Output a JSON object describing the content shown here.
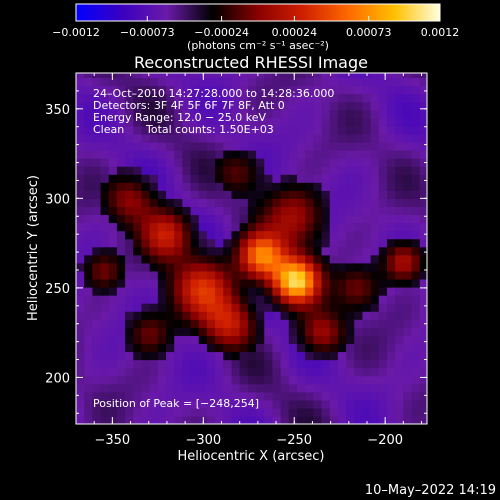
{
  "chart_data": {
    "type": "heatmap",
    "title": "Reconstructed RHESSI Image",
    "xlabel": "Heliocentric X (arcsec)",
    "ylabel": "Heliocentric Y (arcsec)",
    "xlim": [
      -370,
      -177
    ],
    "ylim": [
      174,
      370
    ],
    "x_ticks": [
      -350,
      -300,
      -250,
      -200
    ],
    "y_ticks": [
      200,
      250,
      300,
      350
    ],
    "x_tick_labels": [
      "−350",
      "−300",
      "−250",
      "−200"
    ],
    "y_tick_labels": [
      "200",
      "250",
      "300",
      "350"
    ],
    "colorbar": {
      "range": [
        -0.0012,
        0.0012
      ],
      "ticks": [
        -0.0012,
        -0.00073,
        -0.00024,
        0.00024,
        0.00073,
        0.0012
      ],
      "tick_labels": [
        "−0.0012",
        "−0.00073",
        "−0.00024",
        "0.00024",
        "0.00073",
        "0.0012"
      ],
      "units_label": "(photons cm⁻² s⁻¹ asec⁻²)",
      "colors": [
        "#0000ff",
        "#3a00c0",
        "#6a1aa8",
        "#000000",
        "#8a0000",
        "#d02000",
        "#ff6a00",
        "#ffc000",
        "#ffffe0"
      ]
    },
    "annotations": {
      "time_range": "24–Oct–2010 14:27:28.000 to 14:28:36.000",
      "detectors": "Detectors: 3F 4F 5F 6F 7F 8F, Att 0",
      "energy_range": "Energy Range: 12.0 − 25.0 keV",
      "clean_label": "Clean",
      "total_counts": "Total counts: 1.50E+03",
      "peak_position": "Position of Peak = [−248,254]"
    },
    "sources": [
      {
        "x": -249,
        "y": 254,
        "amp": 1.0,
        "sigma": 9
      },
      {
        "x": -268,
        "y": 268,
        "amp": 0.75,
        "sigma": 9
      },
      {
        "x": -300,
        "y": 250,
        "amp": 0.55,
        "sigma": 12
      },
      {
        "x": -320,
        "y": 280,
        "amp": 0.5,
        "sigma": 10
      },
      {
        "x": -285,
        "y": 230,
        "amp": 0.45,
        "sigma": 10
      },
      {
        "x": -235,
        "y": 225,
        "amp": 0.4,
        "sigma": 9
      },
      {
        "x": -340,
        "y": 300,
        "amp": 0.35,
        "sigma": 10
      },
      {
        "x": -250,
        "y": 290,
        "amp": 0.4,
        "sigma": 12
      },
      {
        "x": -190,
        "y": 265,
        "amp": 0.45,
        "sigma": 8
      },
      {
        "x": -215,
        "y": 250,
        "amp": 0.3,
        "sigma": 9
      },
      {
        "x": -330,
        "y": 225,
        "amp": 0.3,
        "sigma": 9
      },
      {
        "x": -280,
        "y": 315,
        "amp": 0.25,
        "sigma": 9
      },
      {
        "x": -355,
        "y": 260,
        "amp": 0.3,
        "sigma": 8
      }
    ]
  },
  "footer": {
    "date": "10–May–2022 14:19"
  }
}
